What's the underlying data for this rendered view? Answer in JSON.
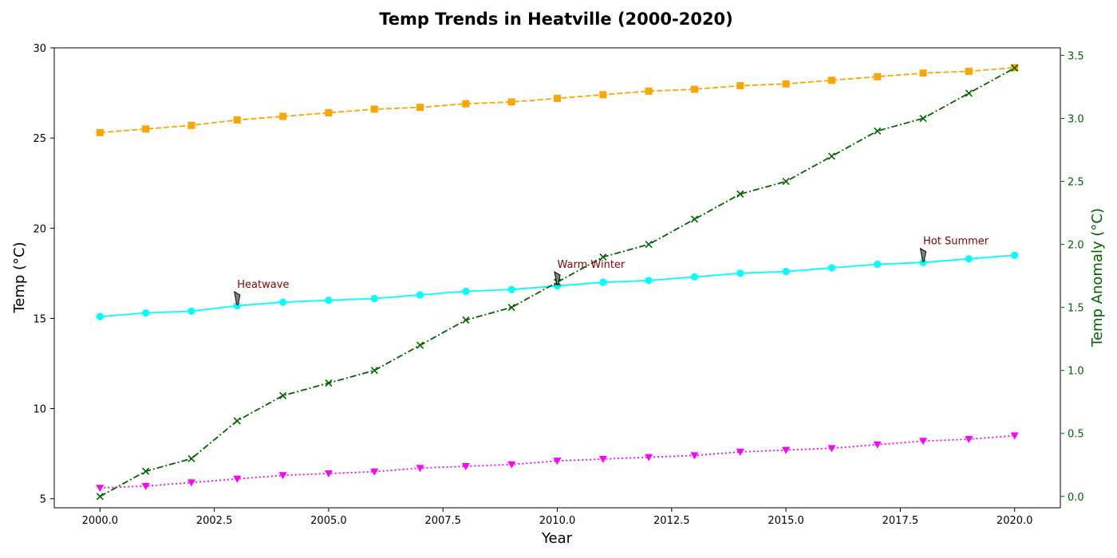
{
  "chart_data": {
    "type": "line",
    "title": "Temp Trends in Heatville (2000-2020)",
    "xlabel": "Year",
    "ylabel": "Temp (°C)",
    "y2label": "Temp Anomaly (°C)",
    "xlim": [
      1999.0,
      2021.0
    ],
    "ylim": [
      4.5,
      30.0
    ],
    "y2lim": [
      -0.09,
      3.56
    ],
    "x_ticks": [
      2000.0,
      2002.5,
      2005.0,
      2007.5,
      2010.0,
      2012.5,
      2015.0,
      2017.5,
      2020.0
    ],
    "x_tick_labels": [
      "2000.0",
      "2002.5",
      "2005.0",
      "2007.5",
      "2010.0",
      "2012.5",
      "2015.0",
      "2017.5",
      "2020.0"
    ],
    "y_ticks": [
      5,
      10,
      15,
      20,
      25,
      30
    ],
    "y_tick_labels": [
      "5",
      "10",
      "15",
      "20",
      "25",
      "30"
    ],
    "y2_ticks": [
      0.0,
      0.5,
      1.0,
      1.5,
      2.0,
      2.5,
      3.0,
      3.5
    ],
    "y2_tick_labels": [
      "0.0",
      "0.5",
      "1.0",
      "1.5",
      "2.0",
      "2.5",
      "3.0",
      "3.5"
    ],
    "grid": false,
    "x": [
      2000,
      2001,
      2002,
      2003,
      2004,
      2005,
      2006,
      2007,
      2008,
      2009,
      2010,
      2011,
      2012,
      2013,
      2014,
      2015,
      2016,
      2017,
      2018,
      2019,
      2020
    ],
    "series": [
      {
        "axis": "left",
        "color": "#ffa500",
        "marker": "square",
        "linestyle": "dashed",
        "values": [
          25.3,
          25.5,
          25.7,
          26.0,
          26.2,
          26.4,
          26.6,
          26.7,
          26.9,
          27.0,
          27.2,
          27.4,
          27.6,
          27.7,
          27.9,
          28.0,
          28.2,
          28.4,
          28.6,
          28.7,
          28.9
        ]
      },
      {
        "axis": "left",
        "color": "#00ffff",
        "marker": "circle",
        "linestyle": "solid",
        "values": [
          15.1,
          15.3,
          15.4,
          15.7,
          15.9,
          16.0,
          16.1,
          16.3,
          16.5,
          16.6,
          16.8,
          17.0,
          17.1,
          17.3,
          17.5,
          17.6,
          17.8,
          18.0,
          18.1,
          18.3,
          18.5
        ]
      },
      {
        "axis": "left",
        "color": "#ff00ff",
        "marker": "triangle-down",
        "linestyle": "dotted",
        "values": [
          5.6,
          5.7,
          5.9,
          6.1,
          6.3,
          6.4,
          6.5,
          6.7,
          6.8,
          6.9,
          7.1,
          7.2,
          7.3,
          7.4,
          7.6,
          7.7,
          7.8,
          8.0,
          8.2,
          8.3,
          8.5
        ]
      },
      {
        "axis": "right",
        "color": "#006400",
        "marker": "x",
        "linestyle": "dashdot",
        "values": [
          0.0,
          0.2,
          0.3,
          0.6,
          0.8,
          0.9,
          1.0,
          1.2,
          1.4,
          1.5,
          1.7,
          1.9,
          2.0,
          2.2,
          2.4,
          2.5,
          2.7,
          2.9,
          3.0,
          3.2,
          3.4
        ]
      }
    ],
    "annotations": [
      {
        "text": "Heatwave",
        "x": 2003,
        "y": 15.7,
        "text_y": 16.7,
        "color": "#8b0000"
      },
      {
        "text": "Warm Winter",
        "x": 2010,
        "y": 16.8,
        "text_y": 17.8,
        "color": "#8b0000"
      },
      {
        "text": "Hot Summer",
        "x": 2018,
        "y": 18.1,
        "text_y": 19.1,
        "color": "#8b0000"
      }
    ]
  }
}
